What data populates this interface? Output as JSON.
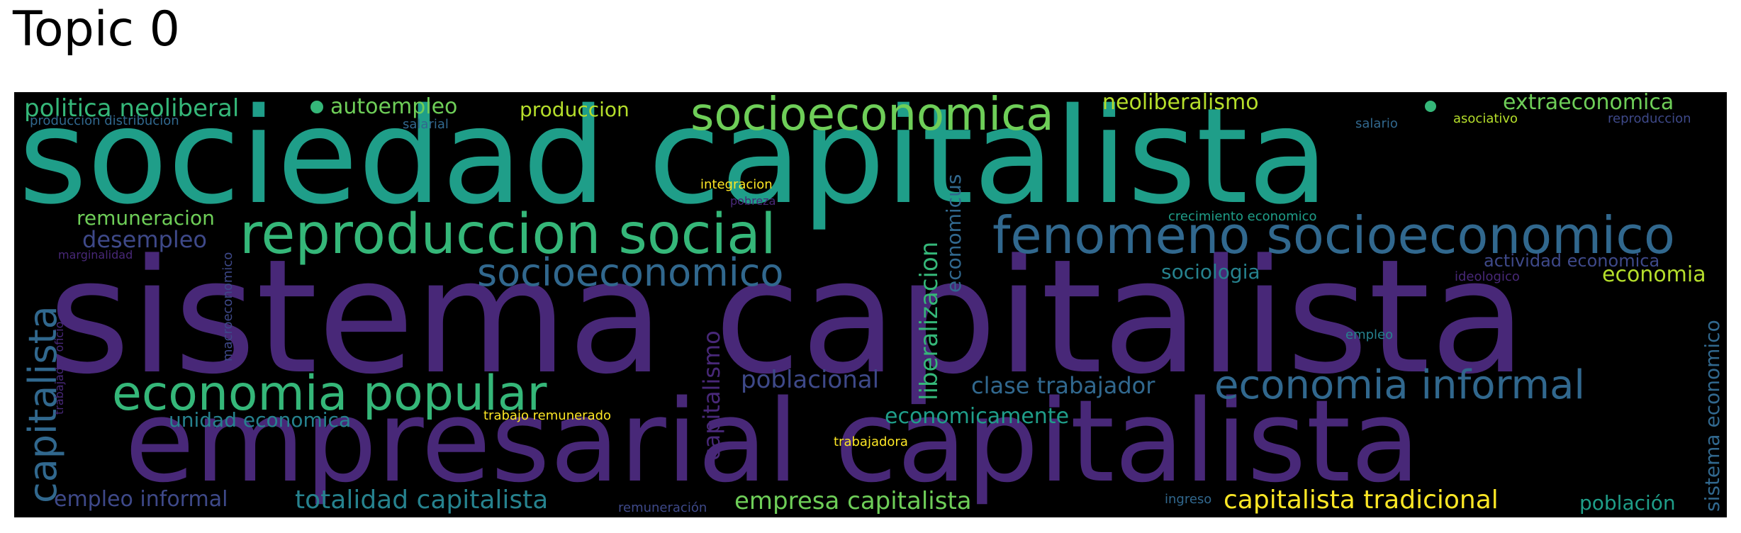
{
  "title": "Topic 0",
  "colors": {
    "purple_dark": "#440154",
    "purple": "#482878",
    "indigo": "#3e4989",
    "blue": "#31688e",
    "teal_blue": "#26828e",
    "teal": "#1f9e89",
    "green": "#35b779",
    "light_green": "#6ece58",
    "yellow_green": "#b5de2b",
    "yellow": "#fde725"
  },
  "words": {
    "sociedad_capitalista": "sociedad capitalista",
    "sistema_capitalista": "sistema capitalista",
    "empresarial_capitalista": "empresarial capitalista",
    "reproduccion_social": "reproduccion social",
    "fenomeno_socioeconomico": "fenomeno socioeconomico",
    "socioeconomica": "socioeconomica",
    "socioeconomico": "socioeconomico",
    "economia_popular": "economia popular",
    "economia_informal": "economia informal",
    "capitalista": "capitalista",
    "politica_neoliberal": "politica neoliberal",
    "autoempleo": "autoempleo",
    "produccion": "produccion",
    "neoliberalismo": "neoliberalismo",
    "extraeconomica": "extraeconomica",
    "produccion_distribucion": "produccion distribucion",
    "salarial": "salarial",
    "salario": "salario",
    "asociativo": "asociativo",
    "reproduccion": "reproduccion",
    "integracion": "integracion",
    "pobreza": "pobreza",
    "remuneracion": "remuneracion",
    "crecimiento_economico": "crecimiento economico",
    "desempleo": "desempleo",
    "marginalidad": "marginalidad",
    "macroeconomico": "macroeconomico",
    "trabajador_oficio": "trabajador oficio",
    "sociologia": "sociologia",
    "actividad_economica": "actividad economica",
    "economia": "economia",
    "ideologico": "ideologico",
    "empleo": "empleo",
    "capitalismo": "capitalismo",
    "liberalizacion": "liberalizacion",
    "economicus": "economicus",
    "poblacional": "poblacional",
    "clase_trabajador": "clase trabajador",
    "unidad_economica": "unidad economica",
    "trabajo_remunerado": "trabajo remunerado",
    "economicamente": "economicamente",
    "trabajadora": "trabajadora",
    "empleo_informal": "empleo informal",
    "totalidad_capitalista": "totalidad capitalista",
    "remuneracion_accent": "remuneración",
    "empresa_capitalista": "empresa capitalista",
    "ingreso": "ingreso",
    "capitalista_tradicional": "capitalista tradicional",
    "poblacion": "población",
    "sistema_economico": "sistema economico"
  }
}
